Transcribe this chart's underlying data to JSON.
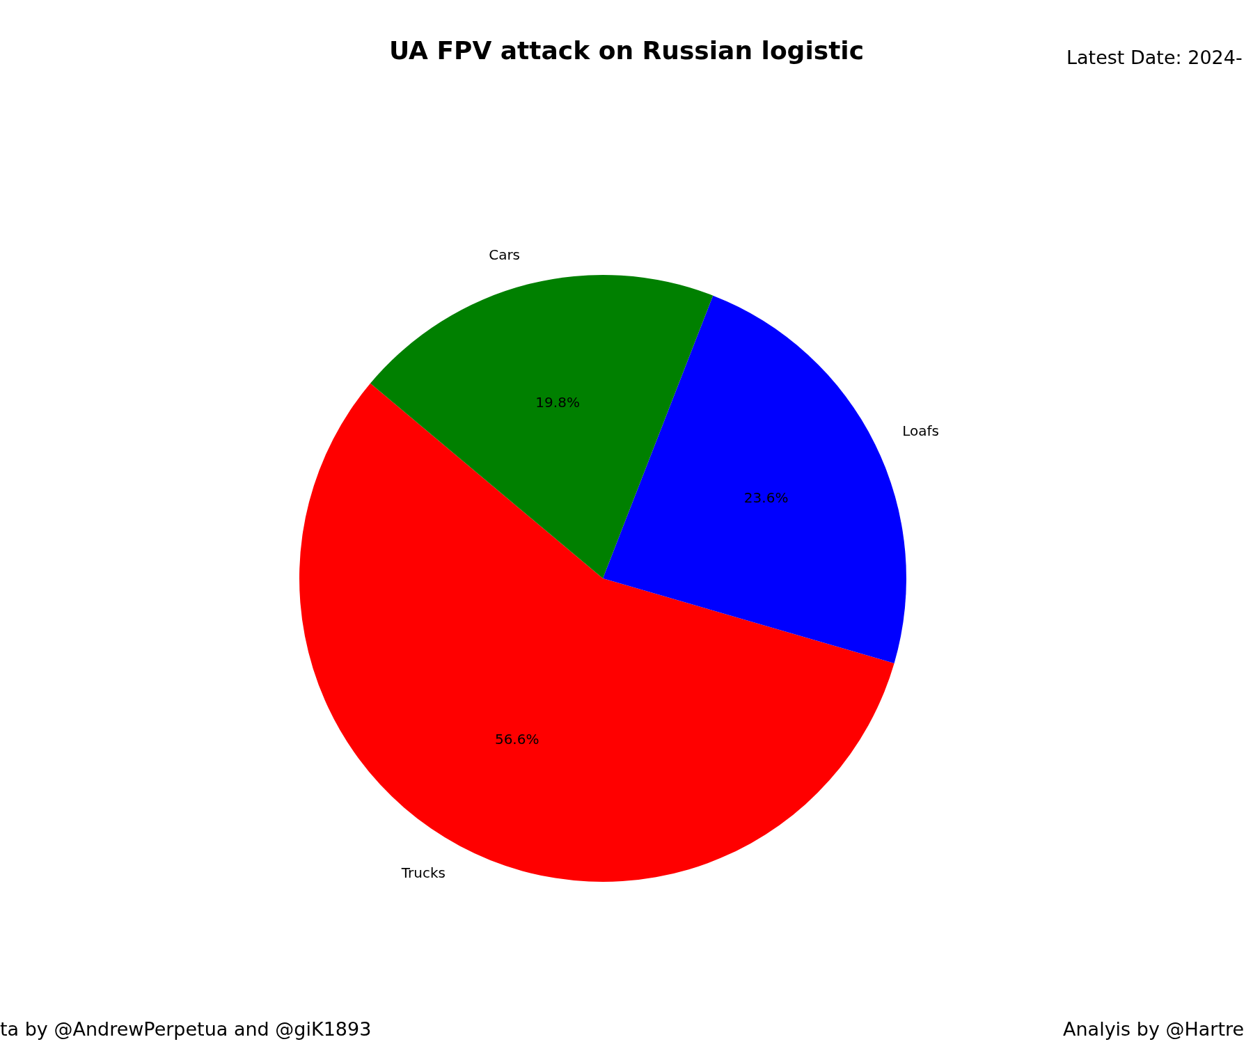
{
  "chart_data": {
    "type": "pie",
    "title": "UA FPV attack on Russian logistic",
    "categories": [
      "Trucks",
      "Loafs",
      "Cars"
    ],
    "values": [
      56.6,
      23.6,
      19.8
    ],
    "value_labels": [
      "56.6%",
      "23.6%",
      "19.8%"
    ],
    "colors": [
      "#ff0000",
      "#0000ff",
      "#008000"
    ],
    "annotations": [
      "Latest Date: 2024-",
      "ta by @AndrewPerpetua and @giK1893",
      "Analyis by @Hartre"
    ],
    "legend": false
  }
}
